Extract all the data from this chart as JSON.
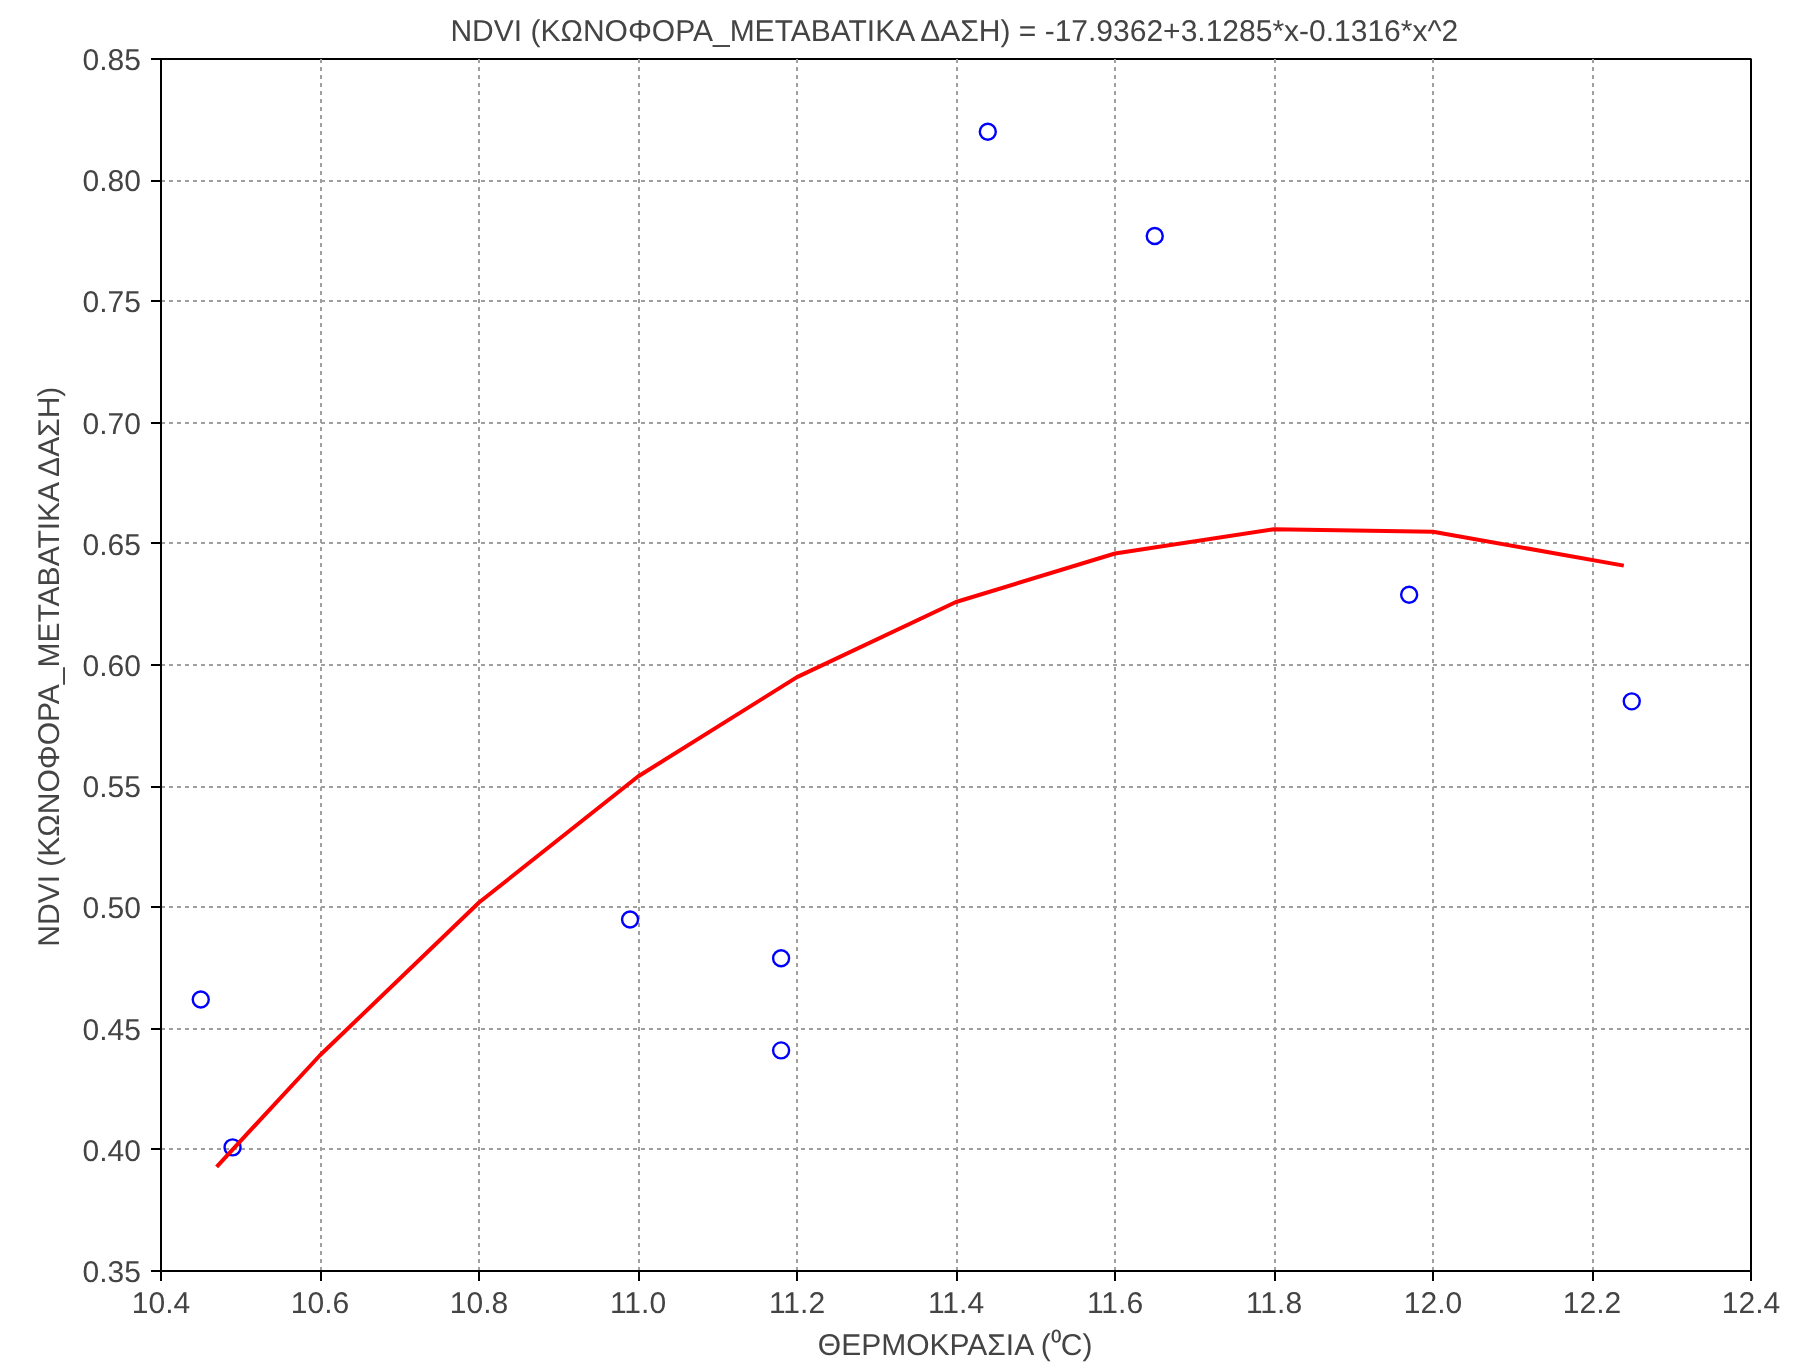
{
  "chart_data": {
    "type": "scatter",
    "title": "NDVI (ΚΩΝΟΦΟΡΑ_ΜΕΤΑΒΑΤΙΚΑ ΔΑΣΗ) = -17.9362+3.1285*x-0.1316*x^2",
    "xlabel": "ΘΕΡΜΟΚΡΑΣΙΑ (⁰C)",
    "ylabel": "NDVI (ΚΩΝΟΦΟΡΑ_ΜΕΤΑΒΑΤΙΚΑ ΔΑΣΗ)",
    "xlim": [
      10.4,
      12.4
    ],
    "xticks": [
      {
        "value": 10.4,
        "label": "10.4"
      },
      {
        "value": 10.6,
        "label": "10.6"
      },
      {
        "value": 10.8,
        "label": "10.8"
      },
      {
        "value": 11.0,
        "label": "11.0"
      },
      {
        "value": 11.2,
        "label": "11.2"
      },
      {
        "value": 11.4,
        "label": "11.4"
      },
      {
        "value": 11.6,
        "label": "11.6"
      },
      {
        "value": 11.8,
        "label": "11.8"
      },
      {
        "value": 12.0,
        "label": "12.0"
      },
      {
        "value": 12.2,
        "label": "12.2"
      },
      {
        "value": 12.4,
        "label": "12.4"
      }
    ],
    "ylim": [
      0.35,
      0.85
    ],
    "yticks": [
      {
        "value": 0.35,
        "label": "0.35"
      },
      {
        "value": 0.4,
        "label": "0.40"
      },
      {
        "value": 0.45,
        "label": "0.45"
      },
      {
        "value": 0.5,
        "label": "0.50"
      },
      {
        "value": 0.55,
        "label": "0.55"
      },
      {
        "value": 0.6,
        "label": "0.60"
      },
      {
        "value": 0.65,
        "label": "0.65"
      },
      {
        "value": 0.7,
        "label": "0.70"
      },
      {
        "value": 0.75,
        "label": "0.75"
      },
      {
        "value": 0.8,
        "label": "0.80"
      },
      {
        "value": 0.85,
        "label": "0.85"
      }
    ],
    "grid": true,
    "series": [
      {
        "color": "#0000ff",
        "marker": "circle",
        "x": [
          10.45,
          10.49,
          10.99,
          11.18,
          11.18,
          11.44,
          11.65,
          11.97,
          12.25
        ],
        "values": [
          0.462,
          0.401,
          0.495,
          0.479,
          0.441,
          0.82,
          0.777,
          0.629,
          0.585
        ]
      },
      {
        "type": "line",
        "color": "#ff0000",
        "line_style": "solid",
        "x": [
          10.47,
          10.6,
          10.8,
          11.0,
          11.2,
          11.4,
          11.6,
          11.8,
          12.0,
          12.24
        ],
        "values": [
          0.393,
          0.439,
          0.502,
          0.554,
          0.595,
          0.626,
          0.646,
          0.656,
          0.655,
          0.641
        ]
      }
    ]
  }
}
